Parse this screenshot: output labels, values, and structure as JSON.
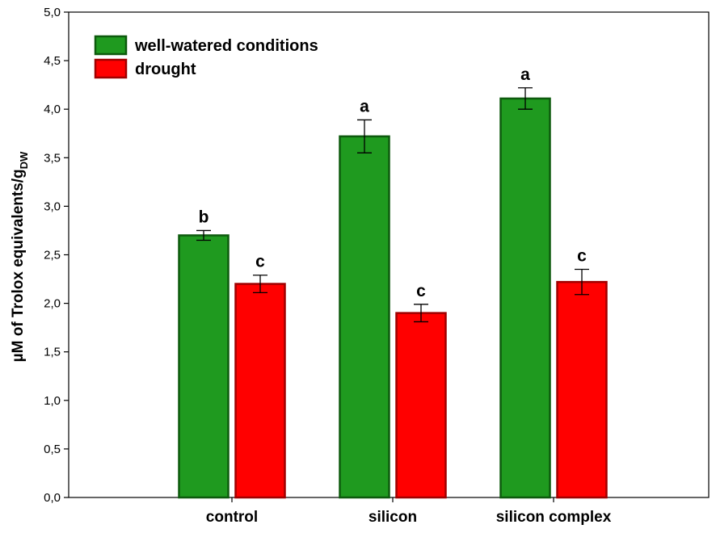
{
  "chart_data": {
    "type": "bar",
    "title": "",
    "xlabel": "",
    "ylabel": "µM of Trolox equivalents/g",
    "ylabel_subscript": "DW",
    "ylim": [
      0,
      5
    ],
    "yticks": [
      "0,0",
      "0,5",
      "1,0",
      "1,5",
      "2,0",
      "2,5",
      "3,0",
      "3,5",
      "4,0",
      "4,5",
      "5,0"
    ],
    "categories": [
      "control",
      "silicon",
      "silicon complex"
    ],
    "series": [
      {
        "name": "well-watered conditions",
        "color": "#1f9a1f",
        "border": "#0d5a0d",
        "values": [
          2.7,
          3.72,
          4.11
        ],
        "errors": [
          0.05,
          0.17,
          0.11
        ],
        "significance": [
          "b",
          "a",
          "a"
        ]
      },
      {
        "name": "drought",
        "color": "#ff0000",
        "border": "#a00000",
        "values": [
          2.2,
          1.9,
          2.22
        ],
        "errors": [
          0.09,
          0.09,
          0.13
        ],
        "significance": [
          "c",
          "c",
          "c"
        ]
      }
    ],
    "legend_position": "top-left",
    "grid": false
  }
}
